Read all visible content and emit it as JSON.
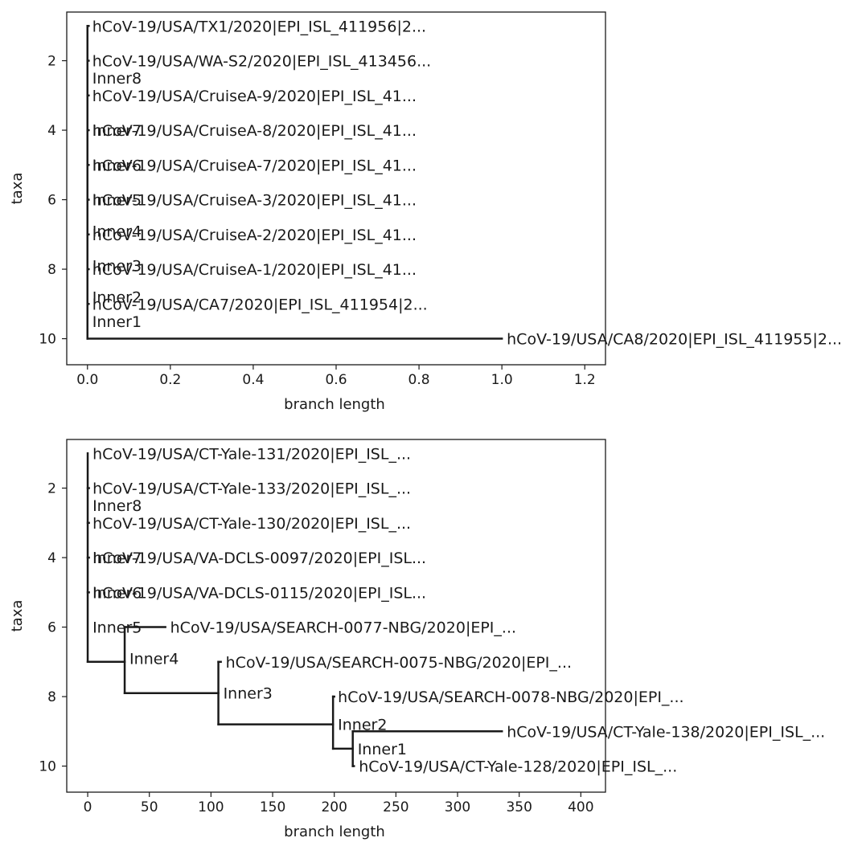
{
  "chart_data": [
    {
      "type": "tree",
      "xlabel": "branch length",
      "ylabel": "taxa",
      "xlim": [
        -0.05,
        1.25
      ],
      "ylim": [
        10.75,
        0.6
      ],
      "x_ticks": [
        0.0,
        0.2,
        0.4,
        0.6,
        0.8,
        1.0,
        1.2
      ],
      "x_tick_labels": [
        "0.0",
        "0.2",
        "0.4",
        "0.6",
        "0.8",
        "1.0",
        "1.2"
      ],
      "y_ticks": [
        2,
        4,
        6,
        8,
        10
      ],
      "y_tick_labels": [
        "2",
        "4",
        "6",
        "8",
        "10"
      ],
      "grid": false,
      "branches": [
        [
          0,
          1,
          0,
          10
        ],
        [
          0,
          10,
          1.0,
          10
        ],
        [
          0,
          1,
          0.003,
          1
        ],
        [
          0,
          2,
          0.003,
          2
        ],
        [
          0,
          3,
          0.003,
          3
        ],
        [
          0,
          4,
          0.003,
          4
        ],
        [
          0,
          5,
          0.003,
          5
        ],
        [
          0,
          6,
          0.003,
          6
        ],
        [
          0,
          7,
          0.003,
          7
        ],
        [
          0,
          8,
          0.003,
          8
        ],
        [
          0,
          9,
          0.003,
          9
        ]
      ],
      "labels": [
        {
          "x": 0.0,
          "y": 1,
          "text": "hCoV-19/USA/TX1/2020|EPI_ISL_411956|2..."
        },
        {
          "x": 0.0,
          "y": 2,
          "text": "hCoV-19/USA/WA-S2/2020|EPI_ISL_413456..."
        },
        {
          "x": 0.0,
          "y": 2.5,
          "text": "Inner8"
        },
        {
          "x": 0.0,
          "y": 3,
          "text": "hCoV-19/USA/CruiseA-9/2020|EPI_ISL_41..."
        },
        {
          "x": 0.0,
          "y": 4,
          "text": "hCoV-19/USA/CruiseA-8/2020|EPI_ISL_41..."
        },
        {
          "x": 0.0,
          "y": 4,
          "text": "Inner7"
        },
        {
          "x": 0.0,
          "y": 5,
          "text": "hCoV-19/USA/CruiseA-7/2020|EPI_ISL_41..."
        },
        {
          "x": 0.0,
          "y": 5,
          "text": "Inner6"
        },
        {
          "x": 0.0,
          "y": 6,
          "text": "hCoV-19/USA/CruiseA-3/2020|EPI_ISL_41..."
        },
        {
          "x": 0.0,
          "y": 6,
          "text": "Inner5"
        },
        {
          "x": 0.0,
          "y": 7,
          "text": "hCoV-19/USA/CruiseA-2/2020|EPI_ISL_41..."
        },
        {
          "x": 0.0,
          "y": 6.9,
          "text": "Inner4"
        },
        {
          "x": 0.0,
          "y": 8,
          "text": "hCoV-19/USA/CruiseA-1/2020|EPI_ISL_41..."
        },
        {
          "x": 0.0,
          "y": 7.9,
          "text": "Inner3"
        },
        {
          "x": 0.0,
          "y": 8.8,
          "text": "Inner2"
        },
        {
          "x": 0.0,
          "y": 9,
          "text": "hCoV-19/USA/CA7/2020|EPI_ISL_411954|2..."
        },
        {
          "x": 0.0,
          "y": 9.5,
          "text": "Inner1"
        },
        {
          "x": 1.0,
          "y": 10,
          "text": "hCoV-19/USA/CA8/2020|EPI_ISL_411955|2..."
        }
      ]
    },
    {
      "type": "tree",
      "xlabel": "branch length",
      "ylabel": "taxa",
      "xlim": [
        -17,
        420
      ],
      "ylim": [
        10.75,
        0.6
      ],
      "x_ticks": [
        0,
        50,
        100,
        150,
        200,
        250,
        300,
        350,
        400
      ],
      "x_tick_labels": [
        "0",
        "50",
        "100",
        "150",
        "200",
        "250",
        "300",
        "350",
        "400"
      ],
      "y_ticks": [
        2,
        4,
        6,
        8,
        10
      ],
      "y_tick_labels": [
        "2",
        "4",
        "6",
        "8",
        "10"
      ],
      "grid": false,
      "branches": [
        [
          0,
          1,
          0,
          7
        ],
        [
          0,
          7,
          30,
          7
        ],
        [
          30,
          6,
          30,
          7.9
        ],
        [
          30,
          6,
          63,
          6
        ],
        [
          30,
          7.9,
          106,
          7.9
        ],
        [
          106,
          7,
          106,
          8.8
        ],
        [
          106,
          7,
          108,
          7
        ],
        [
          106,
          8.8,
          199,
          8.8
        ],
        [
          199,
          8,
          199,
          9.5
        ],
        [
          199,
          8,
          200,
          8
        ],
        [
          199,
          9.5,
          215,
          9.5
        ],
        [
          215,
          9,
          215,
          10
        ],
        [
          215,
          9,
          336,
          9
        ],
        [
          215,
          10,
          216,
          10
        ],
        [
          0,
          2,
          1,
          2
        ],
        [
          0,
          3,
          1,
          3
        ],
        [
          0,
          4,
          1,
          4
        ],
        [
          0,
          5,
          1,
          5
        ]
      ],
      "labels": [
        {
          "x": 0,
          "y": 1,
          "text": "hCoV-19/USA/CT-Yale-131/2020|EPI_ISL_..."
        },
        {
          "x": 0,
          "y": 2,
          "text": "hCoV-19/USA/CT-Yale-133/2020|EPI_ISL_..."
        },
        {
          "x": 0,
          "y": 2.5,
          "text": "Inner8"
        },
        {
          "x": 0,
          "y": 3,
          "text": "hCoV-19/USA/CT-Yale-130/2020|EPI_ISL_..."
        },
        {
          "x": 0,
          "y": 4,
          "text": "hCoV-19/USA/VA-DCLS-0097/2020|EPI_ISL..."
        },
        {
          "x": 0,
          "y": 4,
          "text": "Inner7"
        },
        {
          "x": 0,
          "y": 5,
          "text": "hCoV-19/USA/VA-DCLS-0115/2020|EPI_ISL..."
        },
        {
          "x": 0,
          "y": 5,
          "text": "Inner6"
        },
        {
          "x": 0,
          "y": 6,
          "text": "Inner5"
        },
        {
          "x": 63,
          "y": 6,
          "text": "hCoV-19/USA/SEARCH-0077-NBG/2020|EPI_..."
        },
        {
          "x": 30,
          "y": 6.9,
          "text": "Inner4"
        },
        {
          "x": 108,
          "y": 7,
          "text": "hCoV-19/USA/SEARCH-0075-NBG/2020|EPI_..."
        },
        {
          "x": 106,
          "y": 7.9,
          "text": "Inner3"
        },
        {
          "x": 199,
          "y": 8,
          "text": "hCoV-19/USA/SEARCH-0078-NBG/2020|EPI_..."
        },
        {
          "x": 199,
          "y": 8.8,
          "text": "Inner2"
        },
        {
          "x": 336,
          "y": 9,
          "text": "hCoV-19/USA/CT-Yale-138/2020|EPI_ISL_..."
        },
        {
          "x": 215,
          "y": 9.5,
          "text": "Inner1"
        },
        {
          "x": 216,
          "y": 10,
          "text": "hCoV-19/USA/CT-Yale-128/2020|EPI_ISL_..."
        }
      ]
    }
  ]
}
